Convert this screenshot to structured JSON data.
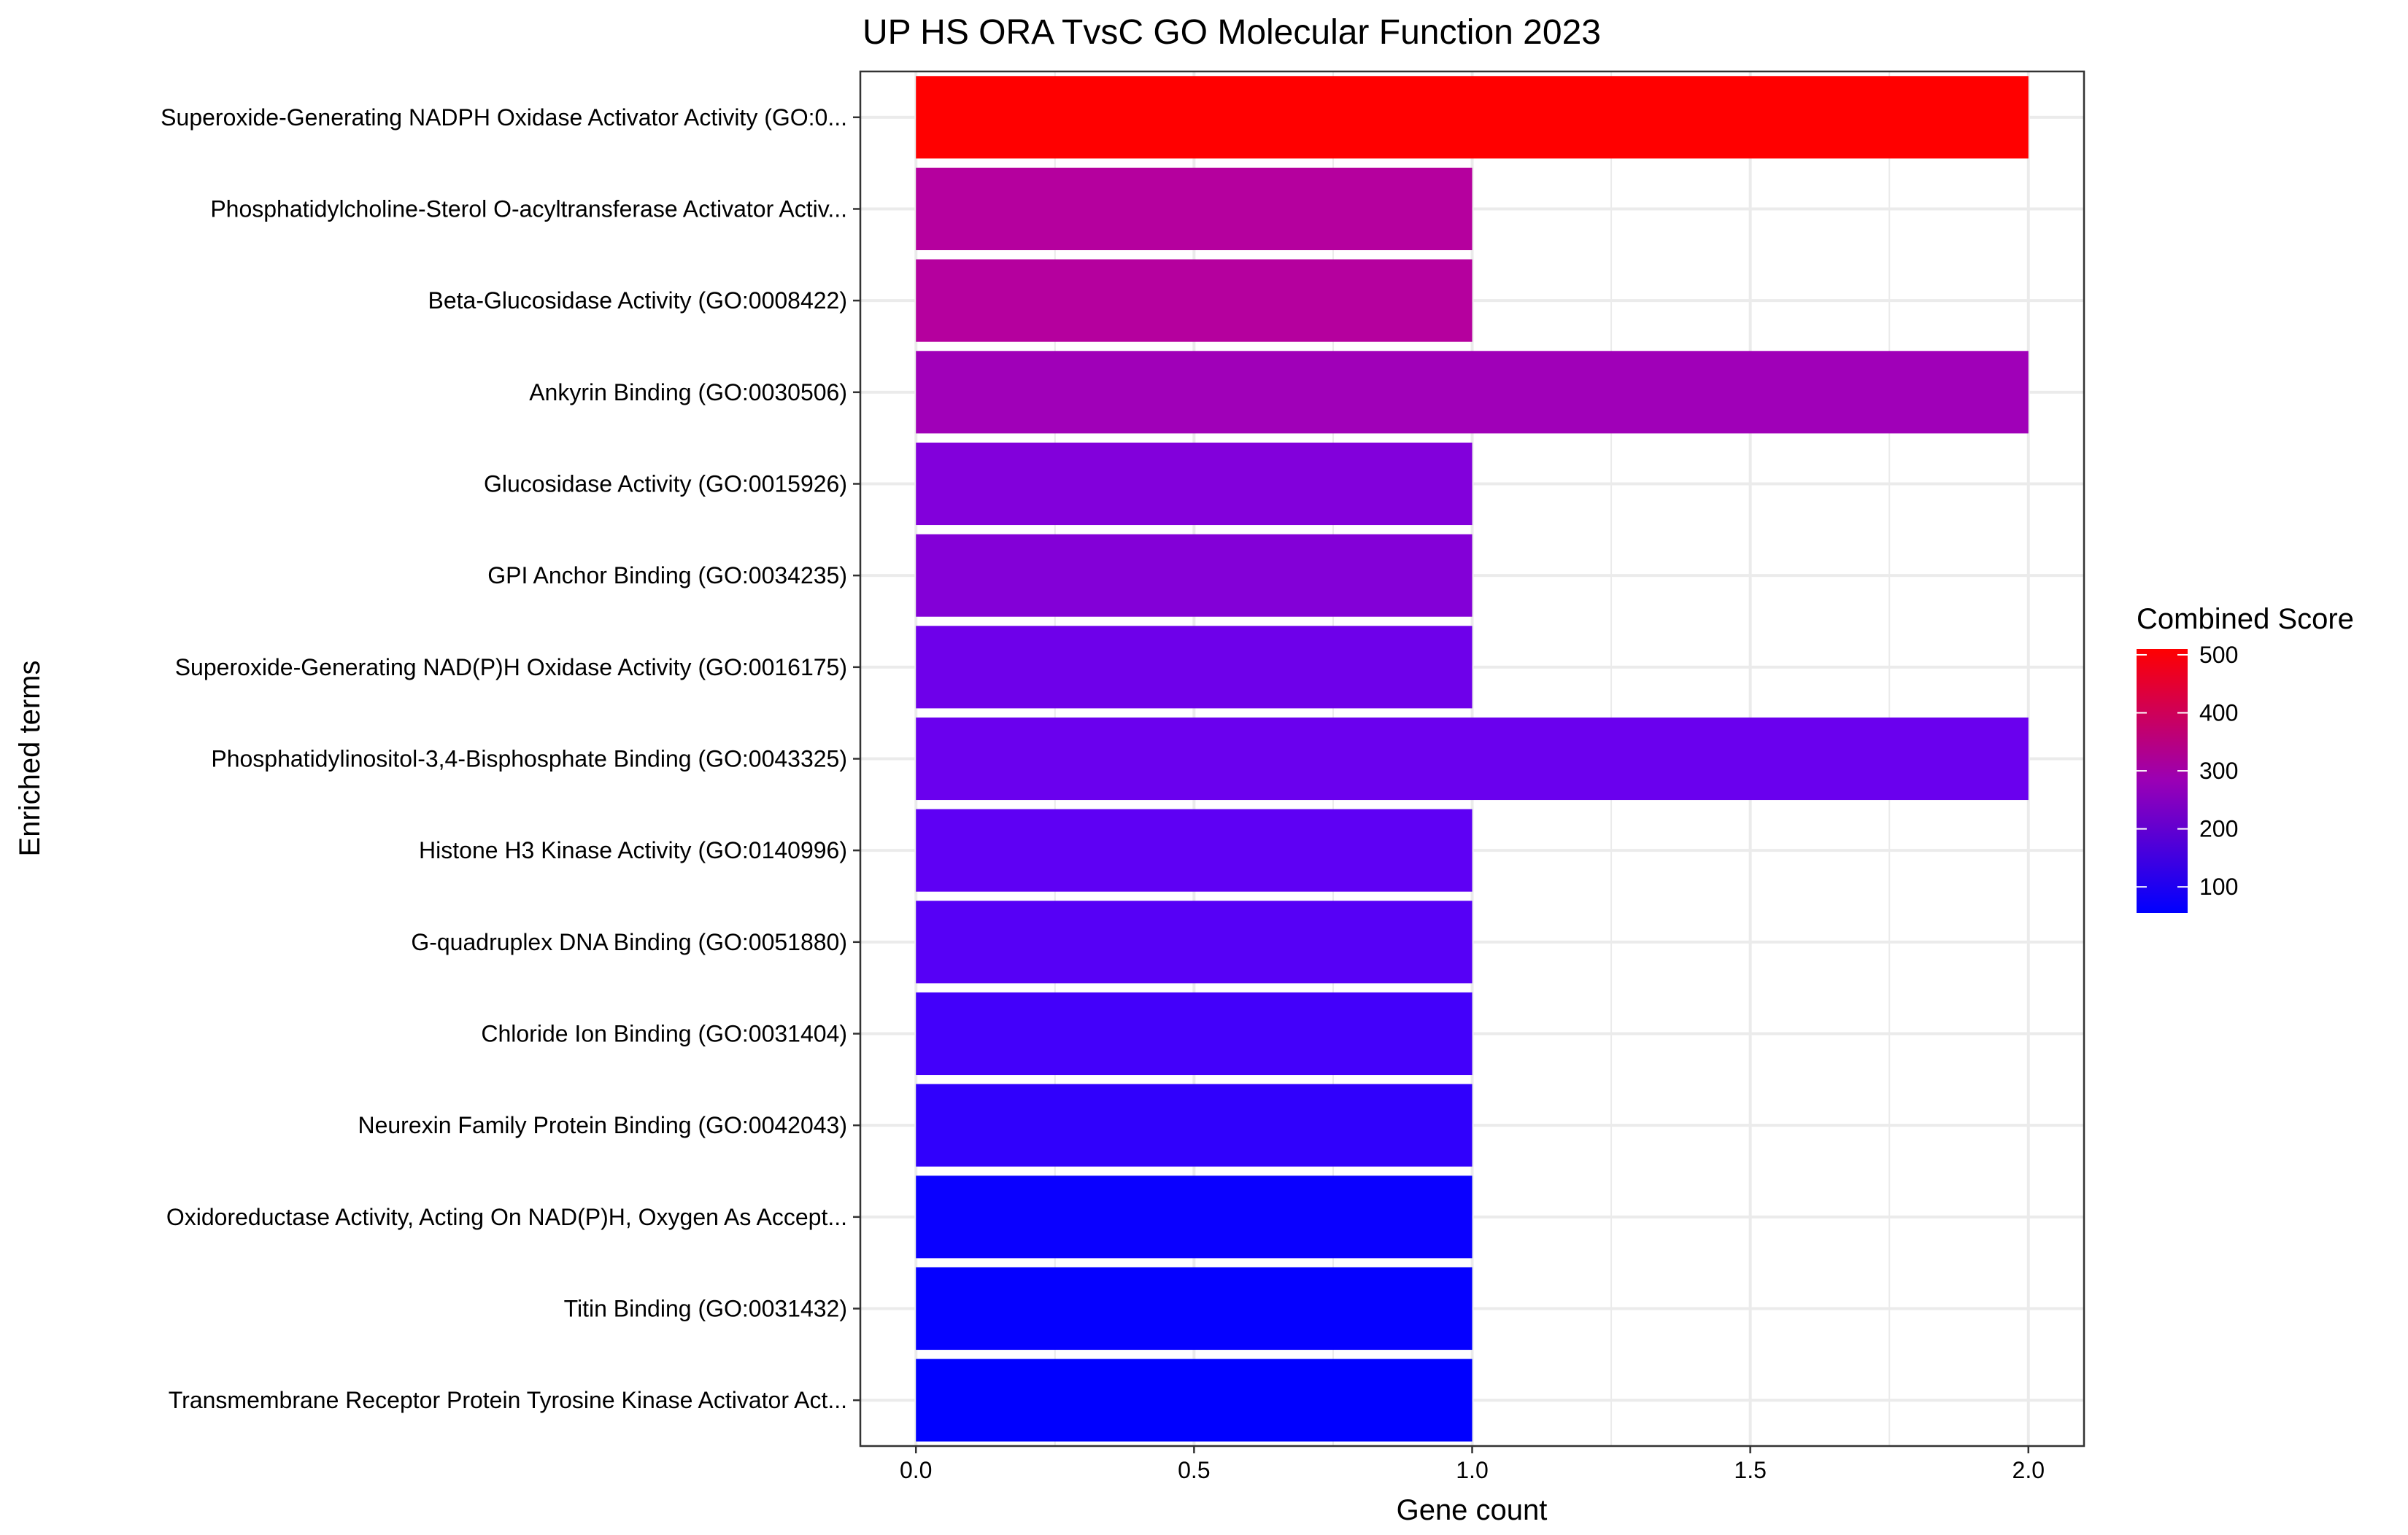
{
  "chart_data": {
    "type": "bar",
    "orientation": "horizontal",
    "title": "UP HS ORA TvsC GO Molecular Function 2023",
    "xlabel": "Gene count",
    "ylabel": "Enriched terms",
    "xlim": [
      -0.1,
      2.1
    ],
    "xticks": [
      0.0,
      0.5,
      1.0,
      1.5,
      2.0
    ],
    "xtick_labels": [
      "0.0",
      "0.5",
      "1.0",
      "1.5",
      "2.0"
    ],
    "grid": true,
    "categories": [
      "Superoxide-Generating NADPH Oxidase Activator Activity (GO:0...",
      "Phosphatidylcholine-Sterol O-acyltransferase Activator Activ...",
      "Beta-Glucosidase Activity (GO:0008422)",
      "Ankyrin Binding (GO:0030506)",
      "Glucosidase Activity (GO:0015926)",
      "GPI Anchor Binding (GO:0034235)",
      "Superoxide-Generating NAD(P)H Oxidase Activity (GO:0016175)",
      "Phosphatidylinositol-3,4-Bisphosphate Binding (GO:0043325)",
      "Histone H3 Kinase Activity (GO:0140996)",
      "G-quadruplex DNA Binding (GO:0051880)",
      "Chloride Ion Binding (GO:0031404)",
      "Neurexin Family Protein Binding (GO:0042043)",
      "Oxidoreductase Activity, Acting On NAD(P)H, Oxygen As Accept...",
      "Titin Binding (GO:0031432)",
      "Transmembrane Receptor Protein Tyrosine Kinase Activator Act..."
    ],
    "values": [
      2,
      1,
      1,
      2,
      1,
      1,
      1,
      2,
      1,
      1,
      1,
      1,
      1,
      1,
      1
    ],
    "combined_scores": [
      510,
      265,
      265,
      240,
      175,
      175,
      150,
      130,
      120,
      110,
      95,
      85,
      60,
      58,
      55
    ],
    "colors": [
      "#ff0000",
      "#b5009e",
      "#b5009e",
      "#a000b8",
      "#8200db",
      "#8300d7",
      "#6e00ea",
      "#6a00ee",
      "#5e00f4",
      "#5600f6",
      "#4300fa",
      "#3000fc",
      "#0a00ff",
      "#0500ff",
      "#0000ff"
    ],
    "legend": {
      "title": "Combined Score",
      "placement": "right",
      "range": [
        55,
        510
      ],
      "ticks": [
        100,
        200,
        300,
        400,
        500
      ],
      "tick_labels": [
        "100",
        "200",
        "300",
        "400",
        "500"
      ],
      "low_color": "#0000ff",
      "high_color": "#ff0000"
    }
  }
}
